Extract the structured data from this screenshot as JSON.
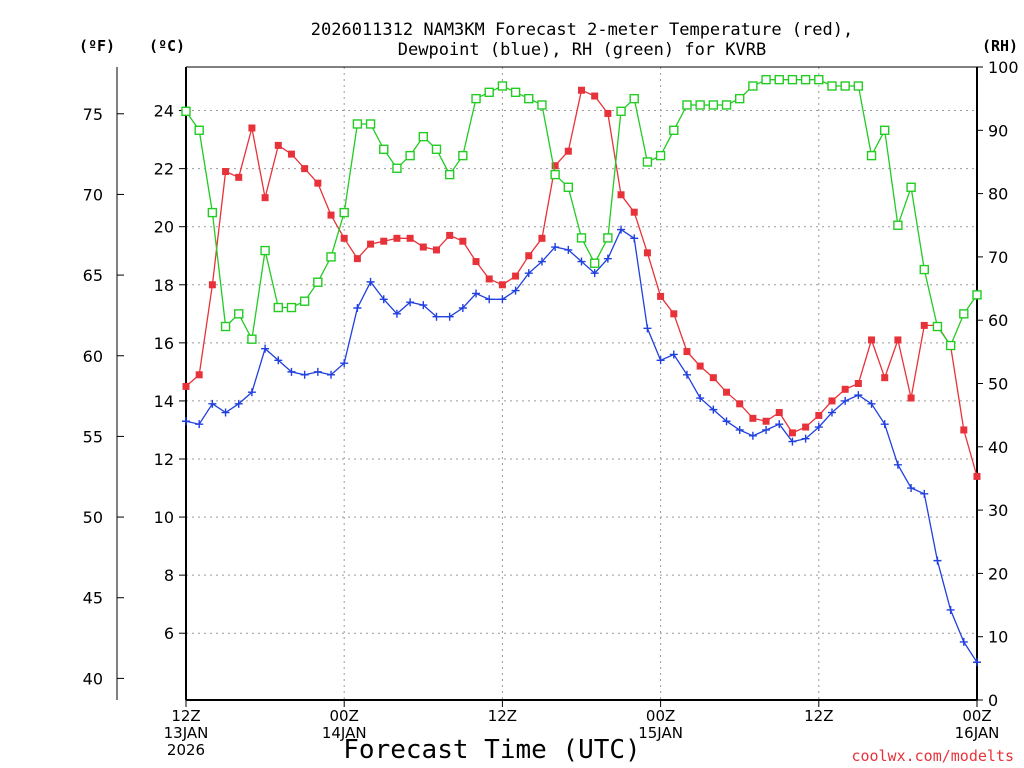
{
  "chart_data": {
    "type": "line",
    "title_line1": "2026011312 NAM3KM Forecast 2-meter Temperature (red),",
    "title_line2": "Dewpoint (blue), RH (green) for KVRB",
    "xlabel": "Forecast Time (UTC)",
    "credit": "coolwx.com/modelts",
    "units": {
      "fahrenheit": "(ºF)",
      "celsius": "(ºC)",
      "rh": "(RH)"
    },
    "x_range_hours": [
      0,
      60
    ],
    "c_range": [
      3.7,
      25.5
    ],
    "rh_range": [
      0,
      100
    ],
    "x_ticks": [
      {
        "hour": 0,
        "lines": [
          "12Z",
          "13JAN",
          "2026"
        ]
      },
      {
        "hour": 12,
        "lines": [
          "00Z",
          "14JAN"
        ]
      },
      {
        "hour": 24,
        "lines": [
          "12Z"
        ]
      },
      {
        "hour": 36,
        "lines": [
          "00Z",
          "15JAN"
        ]
      },
      {
        "hour": 48,
        "lines": [
          "12Z"
        ]
      },
      {
        "hour": 60,
        "lines": [
          "00Z",
          "16JAN"
        ]
      }
    ],
    "f_ticks": [
      40,
      45,
      50,
      55,
      60,
      65,
      70,
      75
    ],
    "c_ticks": [
      6,
      8,
      10,
      12,
      14,
      16,
      18,
      20,
      22,
      24
    ],
    "rh_ticks": [
      0,
      10,
      20,
      30,
      40,
      50,
      60,
      70,
      80,
      90,
      100
    ],
    "series": [
      {
        "name": "Temperature",
        "unit": "C",
        "color": "#e8323a",
        "marker": "filled-square",
        "values": [
          14.5,
          14.9,
          18.0,
          21.9,
          21.7,
          23.4,
          21.0,
          22.8,
          22.5,
          22.0,
          21.5,
          20.4,
          19.6,
          18.9,
          19.4,
          19.5,
          19.6,
          19.6,
          19.3,
          19.2,
          19.7,
          19.5,
          18.8,
          18.2,
          18.0,
          18.3,
          19.0,
          19.6,
          22.1,
          22.6,
          24.7,
          24.5,
          23.9,
          21.1,
          20.5,
          19.1,
          17.6,
          17.0,
          15.7,
          15.2,
          14.8,
          14.3,
          13.9,
          13.4,
          13.3,
          13.6,
          12.9,
          13.1,
          13.5,
          14.0,
          14.4,
          14.6,
          16.1,
          14.8,
          16.1,
          14.1,
          16.6,
          16.6,
          15.9,
          13.0,
          11.4
        ]
      },
      {
        "name": "Dewpoint",
        "unit": "C",
        "color": "#2040e0",
        "marker": "plus",
        "values": [
          13.3,
          13.2,
          13.9,
          13.6,
          13.9,
          14.3,
          15.8,
          15.4,
          15.0,
          14.9,
          15.0,
          14.9,
          15.3,
          17.2,
          18.1,
          17.5,
          17.0,
          17.4,
          17.3,
          16.9,
          16.9,
          17.2,
          17.7,
          17.5,
          17.5,
          17.8,
          18.4,
          18.8,
          19.3,
          19.2,
          18.8,
          18.4,
          18.9,
          19.9,
          19.6,
          16.5,
          15.4,
          15.6,
          14.9,
          14.1,
          13.7,
          13.3,
          13.0,
          12.8,
          13.0,
          13.2,
          12.6,
          12.7,
          13.1,
          13.6,
          14.0,
          14.2,
          13.9,
          13.2,
          11.8,
          11.0,
          10.8,
          8.5,
          6.8,
          5.7,
          5.0
        ]
      },
      {
        "name": "RH",
        "unit": "%",
        "color": "#22cc22",
        "marker": "open-square",
        "values": [
          93,
          90,
          77,
          59,
          61,
          57,
          71,
          62,
          62,
          63,
          66,
          70,
          77,
          91,
          91,
          87,
          84,
          86,
          89,
          87,
          83,
          86,
          95,
          96,
          97,
          96,
          95,
          94,
          83,
          81,
          73,
          69,
          73,
          93,
          95,
          85,
          86,
          90,
          94,
          94,
          94,
          94,
          95,
          97,
          98,
          98,
          98,
          98,
          98,
          97,
          97,
          97,
          86,
          90,
          75,
          81,
          68,
          59,
          56,
          61,
          64
        ]
      }
    ]
  }
}
